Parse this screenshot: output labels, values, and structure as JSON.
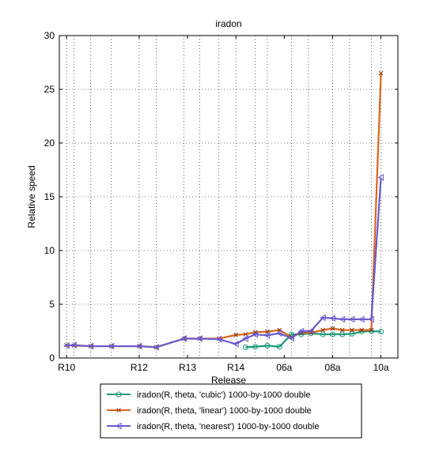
{
  "chart_data": {
    "type": "line",
    "title": "iradon",
    "xlabel": "Release",
    "ylabel": "Relative speed",
    "ylim": [
      0,
      30
    ],
    "xlim": [
      -0.3,
      13.7
    ],
    "grid": true,
    "x_grid_positions": [
      0,
      0.3,
      1,
      1.85,
      3,
      3.7,
      4.85,
      5.5,
      6.3,
      7,
      7.8,
      8.3,
      9.3,
      10,
      11,
      11.7,
      12.6,
      13
    ],
    "y_ticks": [
      0,
      5,
      10,
      15,
      20,
      25,
      30
    ],
    "x_ticks": [
      {
        "x": 0,
        "label": "R10"
      },
      {
        "x": 3,
        "label": "R12"
      },
      {
        "x": 5,
        "label": "R13"
      },
      {
        "x": 7,
        "label": "R14"
      },
      {
        "x": 9,
        "label": "06a"
      },
      {
        "x": 11,
        "label": "08a"
      },
      {
        "x": 13,
        "label": "10a"
      }
    ],
    "legend_placement": "bottom-outside",
    "series": [
      {
        "name": "iradon(R, theta, 'cubic')  1000-by-1000 double",
        "color": "#1a9a7a",
        "marker": "circle",
        "points": [
          [
            7.4,
            1.0
          ],
          [
            7.8,
            1.05
          ],
          [
            8.3,
            1.15
          ],
          [
            8.8,
            1.05
          ],
          [
            9.3,
            2.2
          ],
          [
            9.7,
            2.2
          ],
          [
            10.1,
            2.3
          ],
          [
            10.6,
            2.2
          ],
          [
            11.0,
            2.2
          ],
          [
            11.4,
            2.2
          ],
          [
            11.8,
            2.25
          ],
          [
            12.2,
            2.45
          ],
          [
            12.6,
            2.5
          ],
          [
            13.0,
            2.45
          ]
        ]
      },
      {
        "name": "iradon(R, theta, 'linear')  1000-by-1000 double",
        "color": "#d9651f",
        "marker": "x",
        "points": [
          [
            0.0,
            1.2
          ],
          [
            0.3,
            1.15
          ],
          [
            1.0,
            1.1
          ],
          [
            1.85,
            1.1
          ],
          [
            3.0,
            1.1
          ],
          [
            3.7,
            1.0
          ],
          [
            4.85,
            1.8
          ],
          [
            5.5,
            1.8
          ],
          [
            6.3,
            1.8
          ],
          [
            7.0,
            2.15
          ],
          [
            7.4,
            2.2
          ],
          [
            7.8,
            2.4
          ],
          [
            8.3,
            2.45
          ],
          [
            8.8,
            2.6
          ],
          [
            9.3,
            1.95
          ],
          [
            9.7,
            2.35
          ],
          [
            10.1,
            2.35
          ],
          [
            10.6,
            2.6
          ],
          [
            11.0,
            2.75
          ],
          [
            11.4,
            2.6
          ],
          [
            11.8,
            2.6
          ],
          [
            12.2,
            2.6
          ],
          [
            12.6,
            2.6
          ],
          [
            13.0,
            26.5
          ]
        ]
      },
      {
        "name": "iradon(R, theta, 'nearest')  1000-by-1000 double",
        "color": "#6a5acd",
        "marker": "triangle-left",
        "points": [
          [
            0.0,
            1.15
          ],
          [
            0.3,
            1.2
          ],
          [
            1.0,
            1.1
          ],
          [
            1.85,
            1.1
          ],
          [
            3.0,
            1.1
          ],
          [
            3.7,
            1.0
          ],
          [
            4.85,
            1.8
          ],
          [
            5.5,
            1.8
          ],
          [
            6.3,
            1.75
          ],
          [
            7.0,
            1.3
          ],
          [
            7.4,
            1.8
          ],
          [
            7.8,
            2.2
          ],
          [
            8.3,
            2.1
          ],
          [
            8.8,
            2.3
          ],
          [
            9.3,
            1.85
          ],
          [
            9.7,
            2.5
          ],
          [
            10.1,
            2.5
          ],
          [
            10.6,
            3.75
          ],
          [
            11.0,
            3.7
          ],
          [
            11.4,
            3.6
          ],
          [
            11.8,
            3.6
          ],
          [
            12.2,
            3.6
          ],
          [
            12.6,
            3.6
          ],
          [
            13.0,
            16.8
          ]
        ]
      }
    ]
  }
}
